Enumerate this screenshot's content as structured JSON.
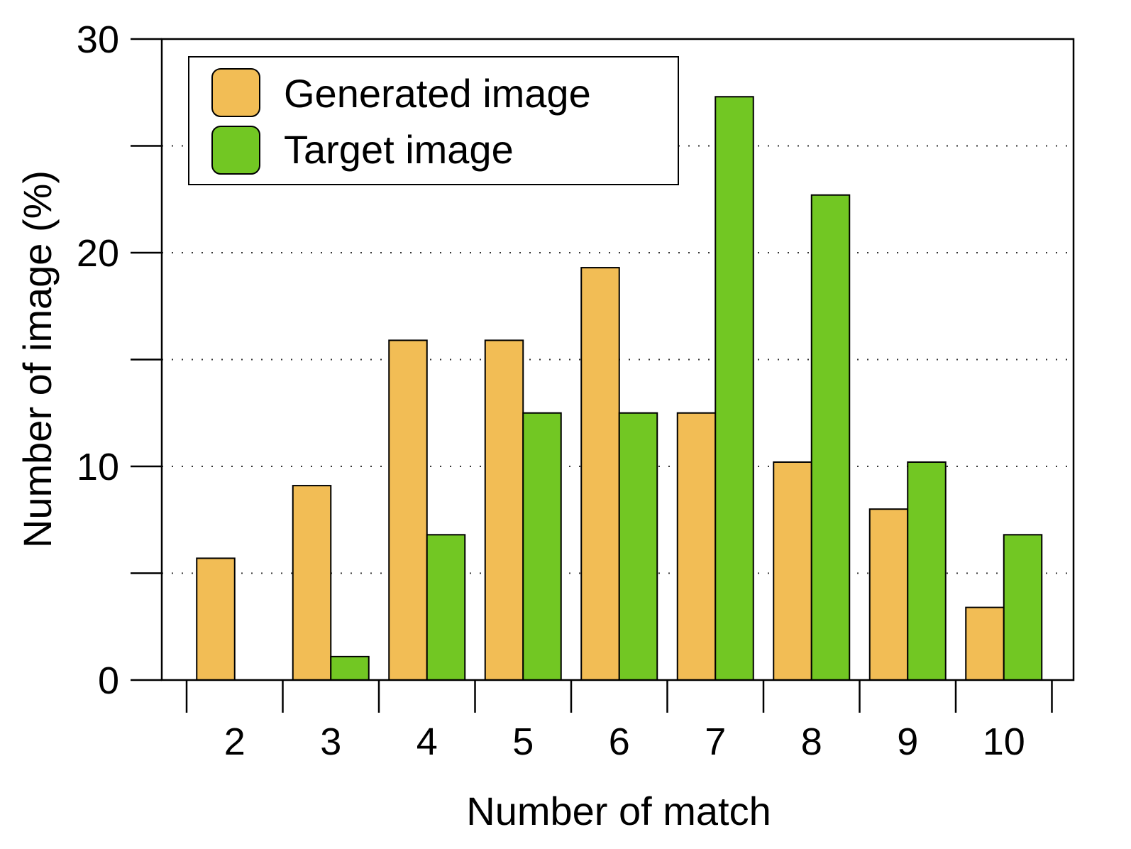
{
  "chart_data": {
    "type": "bar",
    "xlabel": "Number of match",
    "ylabel": "Number of image (%)",
    "categories": [
      "2",
      "3",
      "4",
      "5",
      "6",
      "7",
      "8",
      "9",
      "10"
    ],
    "series": [
      {
        "name": "Generated image",
        "color": "#F2BD55",
        "values": [
          5.7,
          9.1,
          15.9,
          15.9,
          19.3,
          12.5,
          10.2,
          8.0,
          3.4
        ]
      },
      {
        "name": "Target image",
        "color": "#72C723",
        "values": [
          0,
          1.1,
          6.8,
          12.5,
          12.5,
          27.3,
          22.7,
          10.2,
          6.8
        ]
      }
    ],
    "ylim": [
      0,
      30
    ],
    "yticks": [
      "0",
      "10",
      "20",
      "30"
    ],
    "grid": "horizontal dotted lines every 5",
    "legend_position": "top-left"
  }
}
